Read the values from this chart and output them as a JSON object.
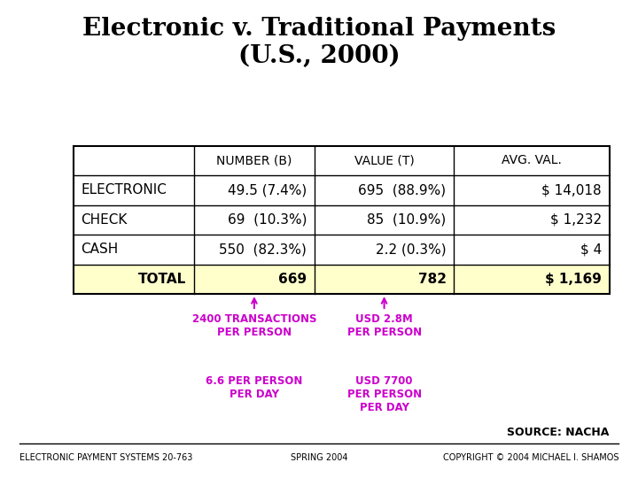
{
  "title": "Electronic v. Traditional Payments\n(U.S., 2000)",
  "title_fontsize": 20,
  "table_headers": [
    "",
    "NUMBER (B)",
    "VALUE (T)",
    "AVG. VAL."
  ],
  "rows": [
    [
      "ELECTRONIC",
      "49.5 (7.4%)",
      "695  (88.9%)",
      "$ 14,018"
    ],
    [
      "CHECK",
      "69  (10.3%)",
      "85  (10.9%)",
      "$ 1,232"
    ],
    [
      "CASH",
      "550  (82.3%)",
      "2.2 (0.3%)",
      "$ 4"
    ],
    [
      "TOTAL",
      "669",
      "782",
      "$ 1,169"
    ]
  ],
  "total_row_bg": "#ffffcc",
  "annotation_color": "#cc00cc",
  "annotation1_text": "2400 TRANSACTIONS\nPER PERSON",
  "annotation2_text": "USD 2.8M\nPER PERSON",
  "annotation3_text": "6.6 PER PERSON\nPER DAY",
  "annotation4_text": "USD 7700\nPER PERSON\nPER DAY",
  "source_text": "SOURCE: NACHA",
  "footer_left": "ELECTRONIC PAYMENT SYSTEMS 20-763",
  "footer_center": "SPRING 2004",
  "footer_right": "COPYRIGHT © 2004 MICHAEL I. SHAMOS",
  "bg_color": "#ffffff"
}
